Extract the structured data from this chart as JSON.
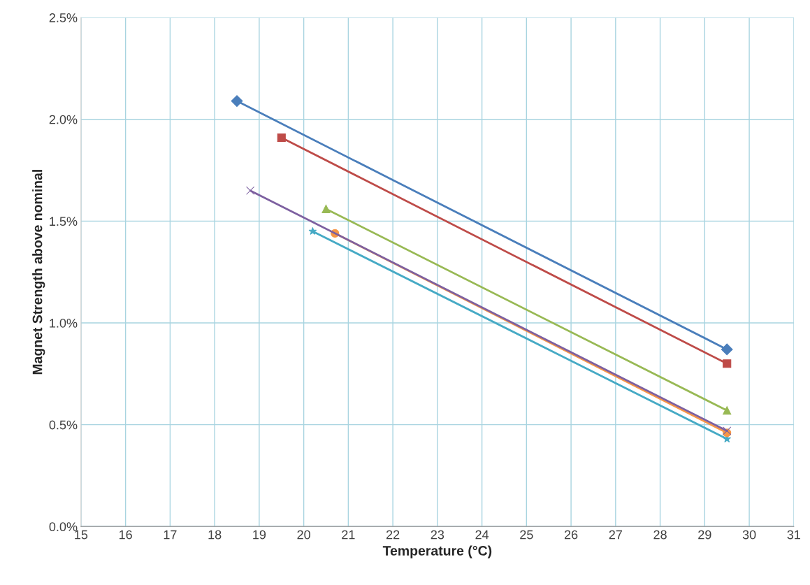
{
  "chart_data": {
    "type": "line",
    "xlabel": "Temperature (°C)",
    "ylabel": "Magnet Strength above nominal",
    "xlim": [
      15,
      31
    ],
    "xticks": [
      15,
      16,
      17,
      18,
      19,
      20,
      21,
      22,
      23,
      24,
      25,
      26,
      27,
      28,
      29,
      30,
      31
    ],
    "ylim": [
      0,
      2.5
    ],
    "yticks": [
      {
        "value": 0,
        "label": "0.0%"
      },
      {
        "value": 0.5,
        "label": "0.5%"
      },
      {
        "value": 1.0,
        "label": "1.0%"
      },
      {
        "value": 1.5,
        "label": "1.5%"
      },
      {
        "value": 2.0,
        "label": "2.0%"
      },
      {
        "value": 2.5,
        "label": "2.5%"
      }
    ],
    "grid": true,
    "series": [
      {
        "x": [
          18.5,
          29.5
        ],
        "values": [
          2.09,
          0.87
        ],
        "color": "#4a7ebb",
        "marker": "diamond"
      },
      {
        "x": [
          19.5,
          29.5
        ],
        "values": [
          1.91,
          0.8
        ],
        "color": "#be4b48",
        "marker": "square"
      },
      {
        "x": [
          20.5,
          29.5
        ],
        "values": [
          1.56,
          0.57
        ],
        "color": "#98b954",
        "marker": "triangle"
      },
      {
        "x": [
          20.2,
          29.5
        ],
        "values": [
          1.45,
          0.43
        ],
        "color": "#46aac5",
        "marker": "star"
      },
      {
        "x": [
          20.7,
          29.5
        ],
        "values": [
          1.44,
          0.46
        ],
        "color": "#f79646",
        "marker": "circle"
      },
      {
        "x": [
          18.8,
          29.5
        ],
        "values": [
          1.65,
          0.47
        ],
        "color": "#7d60a0",
        "marker": "cross"
      }
    ]
  }
}
